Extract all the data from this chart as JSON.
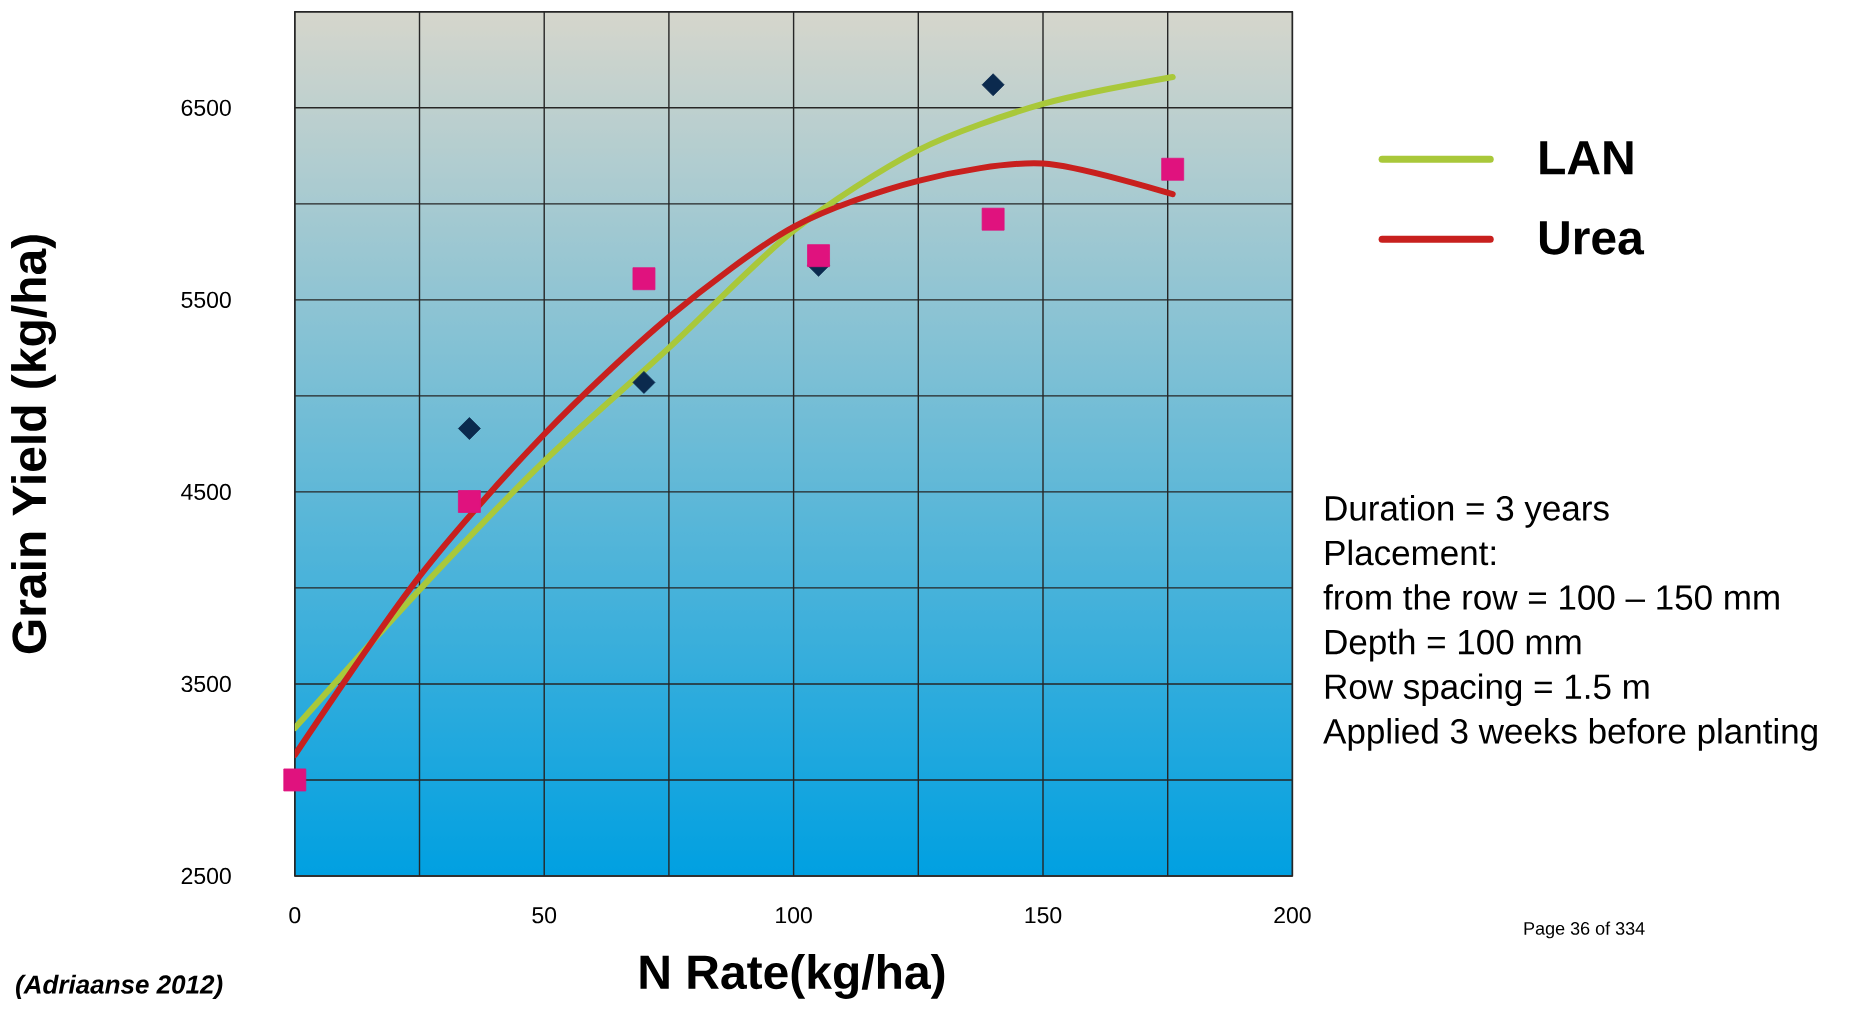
{
  "chart_data": {
    "type": "line",
    "xlabel": "N Rate(kg/ha)",
    "ylabel": "Grain Yield (kg/ha)",
    "xlim": [
      0,
      200
    ],
    "ylim": [
      2500,
      7000
    ],
    "xticks": [
      0,
      {
        "value": 25,
        "label": null
      },
      50,
      {
        "value": 75,
        "label": null
      },
      100,
      {
        "value": 125,
        "label": null
      },
      150,
      {
        "value": 175,
        "label": null
      },
      200
    ],
    "yticks": [
      2500,
      {
        "value": 3000,
        "label": null
      },
      3500,
      {
        "value": 4000,
        "label": null
      },
      4500,
      {
        "value": 5000,
        "label": null
      },
      5500,
      {
        "value": 6000,
        "label": null
      },
      6500,
      {
        "value": 7000,
        "label": null
      }
    ],
    "grid": true,
    "legend": "right",
    "series": [
      {
        "name": "LAN",
        "color": "#a9c83a",
        "x": [
          0,
          25,
          50,
          75,
          100,
          125,
          150,
          176
        ],
        "values": [
          3270,
          3990,
          4660,
          5250,
          5860,
          6280,
          6520,
          6660
        ]
      },
      {
        "name": "Urea",
        "color": "#c8201e",
        "x": [
          0,
          25,
          50,
          75,
          100,
          125,
          150,
          176
        ],
        "values": [
          3130,
          4060,
          4800,
          5410,
          5880,
          6120,
          6210,
          6050
        ]
      },
      {
        "type": "scatter",
        "marker": "diamond",
        "color": "#0b2a4e",
        "x": [
          35,
          70,
          105,
          140
        ],
        "values": [
          4830,
          5070,
          5680,
          6620
        ]
      },
      {
        "type": "scatter",
        "marker": "square",
        "color": "#e0127e",
        "x": [
          0,
          35,
          70,
          105,
          140,
          176
        ],
        "values": [
          3000,
          4450,
          5610,
          5730,
          5920,
          6180
        ]
      }
    ],
    "annotations": [
      "Duration = 3 years",
      "Placement:",
      "from the row = 100 – 150 mm",
      "Depth = 100 mm",
      "Row spacing = 1.5 m",
      "Applied 3 weeks before planting",
      "Page 36 of 334",
      "(Adriaanse 2012)"
    ]
  }
}
